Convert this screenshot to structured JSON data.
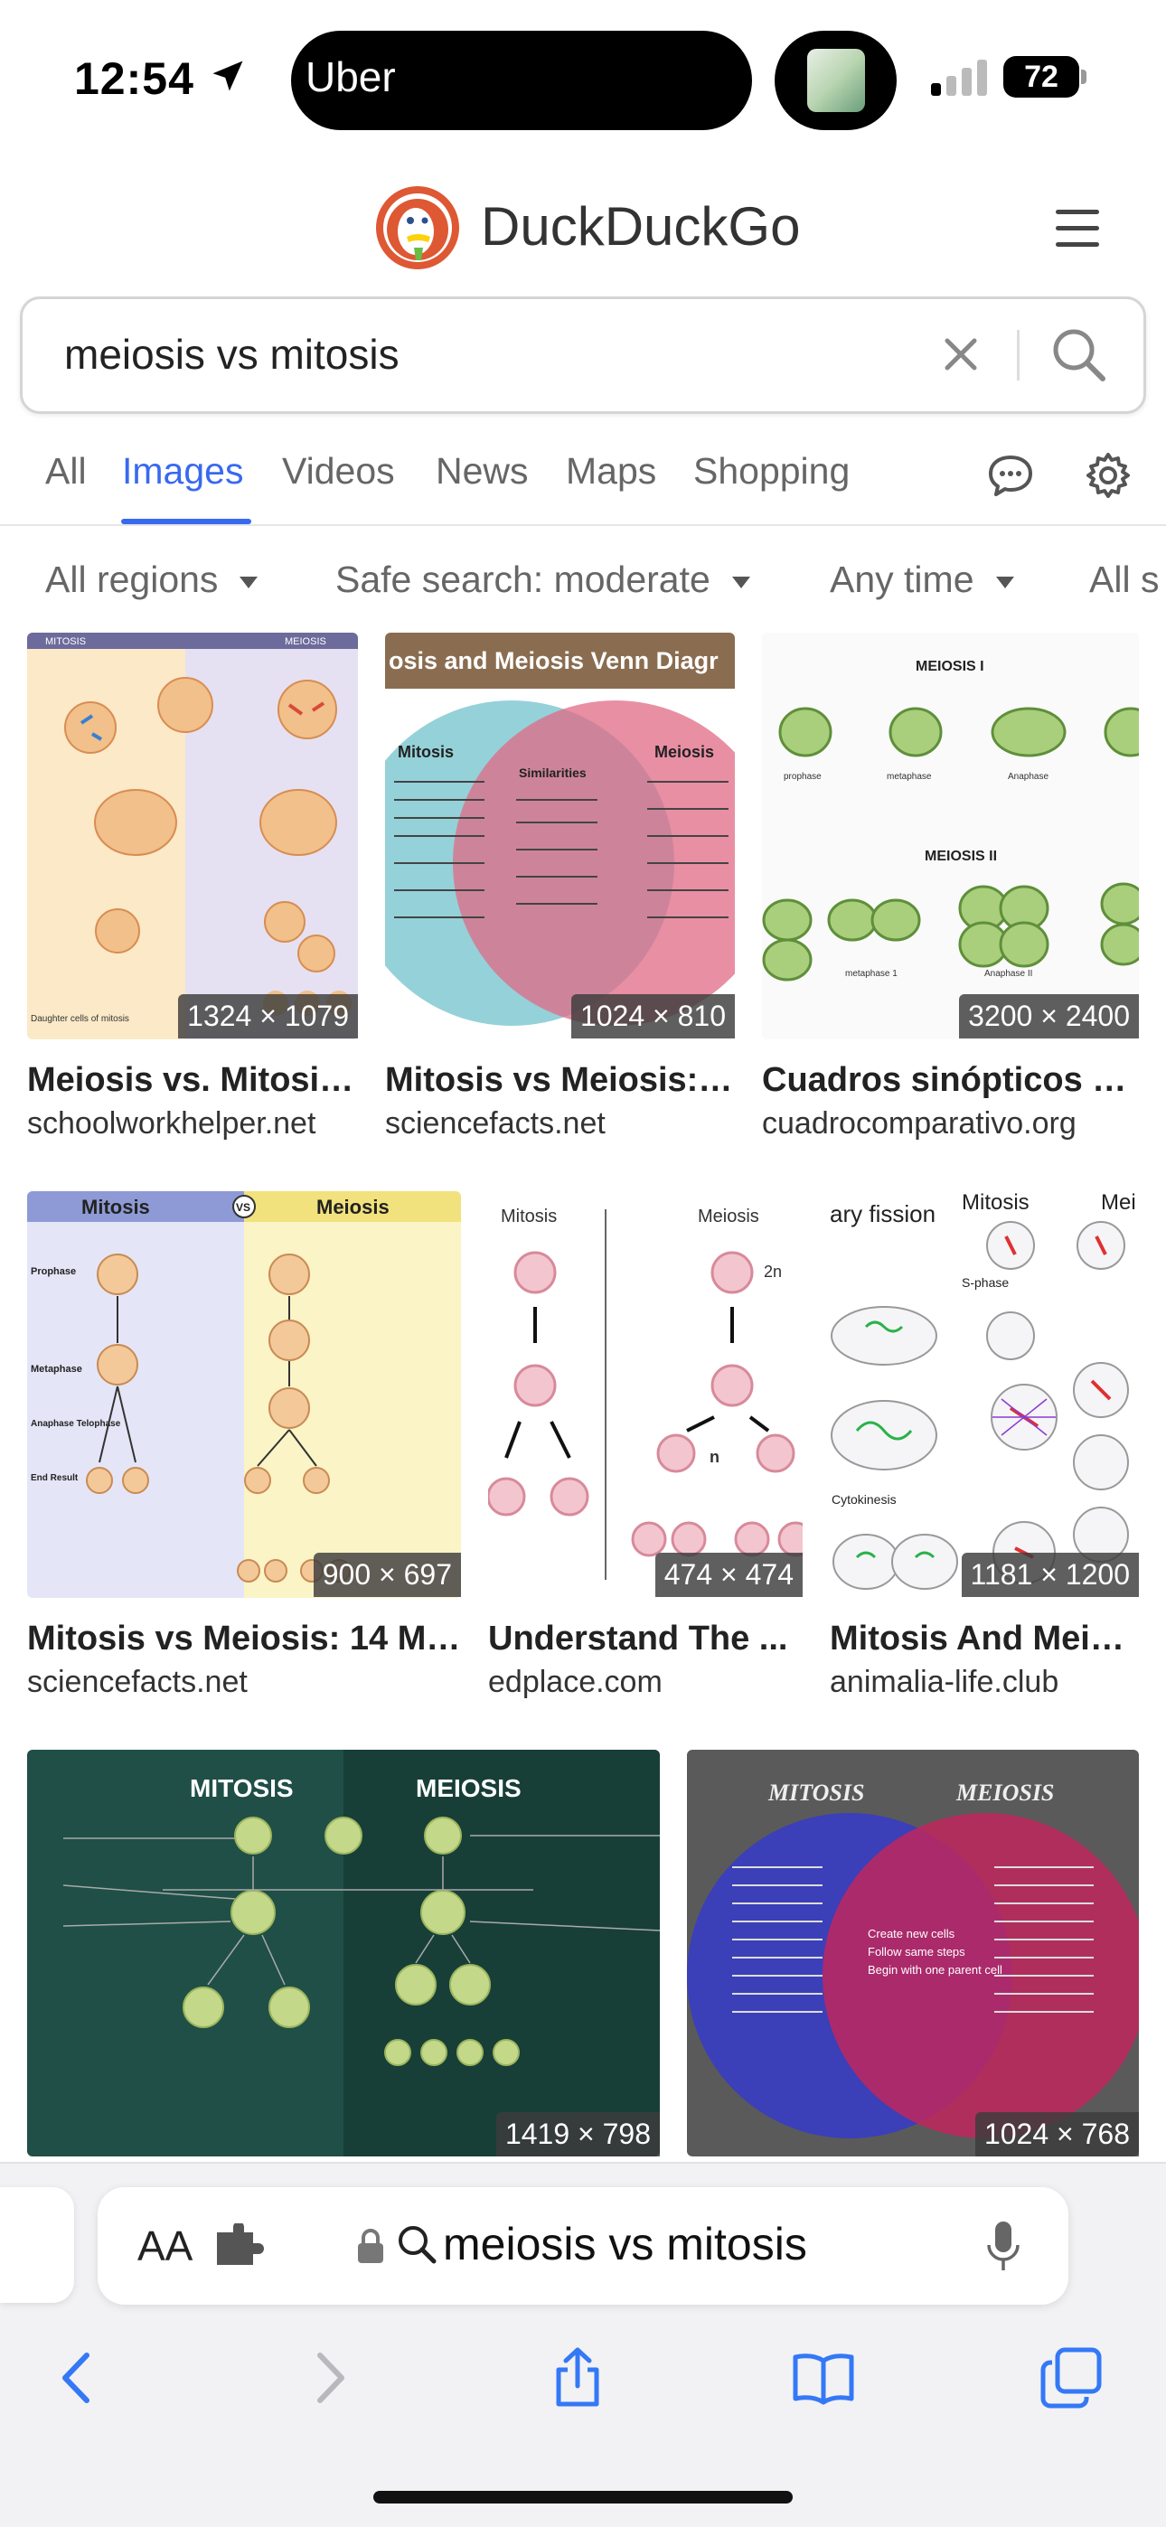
{
  "status": {
    "time": "12:54",
    "app": "Uber",
    "battery": "72"
  },
  "header": {
    "brand": "DuckDuckGo"
  },
  "search": {
    "query": "meiosis vs mitosis"
  },
  "tabs": [
    {
      "label": "All"
    },
    {
      "label": "Images"
    },
    {
      "label": "Videos"
    },
    {
      "label": "News"
    },
    {
      "label": "Maps"
    },
    {
      "label": "Shopping"
    }
  ],
  "filters": [
    {
      "label": "All regions"
    },
    {
      "label": "Safe search: moderate"
    },
    {
      "label": "Any time"
    },
    {
      "label": "All s"
    }
  ],
  "results": [
    {
      "title": "Meiosis vs. Mitosis:...",
      "domain": "schoolworkhelper.net",
      "dimensions": "1324 × 1079",
      "img": {
        "left_header": "MITOSIS",
        "right_header": "MEIOSIS",
        "bottom_label": "Daughter cells of mitosis"
      }
    },
    {
      "title": "Mitosis vs Meiosis: 1...",
      "domain": "sciencefacts.net",
      "dimensions": "1024 × 810",
      "img": {
        "banner": "osis and Meiosis Venn Diagr",
        "left": "Mitosis",
        "middle": "Similarities",
        "right": "Meiosis"
      }
    },
    {
      "title": "Cuadros sinópticos s...",
      "domain": "cuadrocomparativo.org",
      "dimensions": "3200 × 2400",
      "img": {
        "top": "MEIOSIS I",
        "bottom": "MEIOSIS II",
        "l1": "prophase",
        "l2": "metaphase",
        "l3": "Anaphase",
        "l4": "metaphase 1",
        "l5": "Anaphase II"
      }
    },
    {
      "title": "Mitosis vs Meiosis: 14 Mai...",
      "domain": "sciencefacts.net",
      "dimensions": "900 × 697",
      "img": {
        "left": "Mitosis",
        "right": "Meiosis",
        "vs": "VS",
        "r1": "Prophase",
        "r2": "Metaphase",
        "r3": "Anaphase Telophase",
        "r4": "End Result"
      }
    },
    {
      "title": "Understand The ...",
      "domain": "edplace.com",
      "dimensions": "474 × 474",
      "img": {
        "left": "Mitosis",
        "right": "Meiosis",
        "a": "2n",
        "b": "n"
      }
    },
    {
      "title": "Mitosis And Meio...",
      "domain": "animalia-life.club",
      "dimensions": "1181 × 1200",
      "img": {
        "a": "ary fission",
        "b": "Mitosis",
        "c": "Mei",
        "d": "S-phase",
        "e": "Cytokinesis"
      }
    },
    {
      "title": "",
      "domain": "",
      "dimensions": "1419 × 798",
      "img": {
        "left": "MITOSIS",
        "right": "MEIOSIS"
      }
    },
    {
      "title": "",
      "domain": "",
      "dimensions": "1024 × 768",
      "img": {
        "left": "MITOSIS",
        "right": "MEIOSIS",
        "m1": "Create new cells",
        "m2": "Follow same steps",
        "m3": "Begin with one parent cell"
      }
    }
  ],
  "browser": {
    "aa": "AA",
    "url": "meiosis vs mitosis"
  },
  "colors": {
    "accent": "#3969ef",
    "venn_blue": "#3b3fb8",
    "venn_pink": "#c0275d",
    "ddg_orange": "#de5833"
  }
}
